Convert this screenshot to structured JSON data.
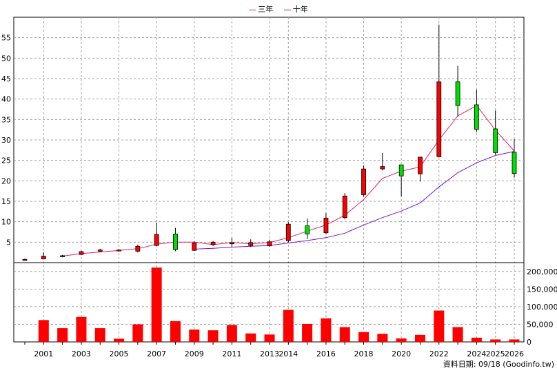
{
  "legend": {
    "ma3_label": "三年",
    "ma10_label": "十年",
    "ma3_color": "#e0206a",
    "ma10_color": "#7a10d0"
  },
  "credit": "資料日期: 09/18  (Goodinfo.tw)",
  "colors": {
    "up": "#ff0000",
    "down": "#00e000",
    "volume": "#ff0000",
    "grid": "#a0a0a0"
  },
  "chart_data": [
    {
      "type": "candlestick",
      "title": "",
      "ylim": [
        0,
        60
      ],
      "yticks": [
        5,
        10,
        15,
        20,
        25,
        30,
        35,
        40,
        45,
        50,
        55
      ],
      "x_tick_labels": [
        "2001",
        "2003",
        "2005",
        "2007",
        "2009",
        "2011",
        "2013",
        "2014",
        "2016",
        "2018",
        "2020",
        "2022",
        "2024",
        "2025",
        "2026"
      ],
      "x_tick_years": [
        2001,
        2003,
        2005,
        2007,
        2009,
        2011,
        2013,
        2014,
        2016,
        2018,
        2020,
        2022,
        2024,
        2025,
        2026
      ],
      "candles": [
        {
          "year": 2000,
          "open": 0.8,
          "close": 0.8,
          "high": 1.0,
          "low": 0.6
        },
        {
          "year": 2001,
          "open": 0.9,
          "close": 1.6,
          "high": 2.5,
          "low": 0.8
        },
        {
          "year": 2002,
          "open": 1.5,
          "close": 1.7,
          "high": 1.9,
          "low": 1.3
        },
        {
          "year": 2003,
          "open": 2.0,
          "close": 2.7,
          "high": 2.9,
          "low": 1.8
        },
        {
          "year": 2004,
          "open": 2.8,
          "close": 3.1,
          "high": 3.4,
          "low": 2.6
        },
        {
          "year": 2005,
          "open": 2.9,
          "close": 3.1,
          "high": 3.3,
          "low": 2.7
        },
        {
          "year": 2006,
          "open": 2.8,
          "close": 4.0,
          "high": 4.4,
          "low": 2.5
        },
        {
          "year": 2007,
          "open": 4.2,
          "close": 6.9,
          "high": 9.8,
          "low": 4.0
        },
        {
          "year": 2008,
          "open": 7.0,
          "close": 3.2,
          "high": 8.5,
          "low": 2.8
        },
        {
          "year": 2009,
          "open": 3.0,
          "close": 4.8,
          "high": 5.2,
          "low": 2.9
        },
        {
          "year": 2010,
          "open": 4.4,
          "close": 5.0,
          "high": 5.3,
          "low": 4.1
        },
        {
          "year": 2011,
          "open": 4.6,
          "close": 4.9,
          "high": 6.1,
          "low": 3.9
        },
        {
          "year": 2012,
          "open": 4.2,
          "close": 4.9,
          "high": 5.7,
          "low": 3.8
        },
        {
          "year": 2013,
          "open": 4.1,
          "close": 5.1,
          "high": 5.6,
          "low": 3.9
        },
        {
          "year": 2014,
          "open": 5.4,
          "close": 9.4,
          "high": 9.9,
          "low": 5.0
        },
        {
          "year": 2015,
          "open": 9.0,
          "close": 7.0,
          "high": 10.8,
          "low": 5.8
        },
        {
          "year": 2016,
          "open": 7.3,
          "close": 10.9,
          "high": 12.1,
          "low": 7.0
        },
        {
          "year": 2017,
          "open": 11.0,
          "close": 16.3,
          "high": 17.0,
          "low": 10.6
        },
        {
          "year": 2018,
          "open": 16.6,
          "close": 22.9,
          "high": 23.8,
          "low": 16.1
        },
        {
          "year": 2019,
          "open": 22.9,
          "close": 23.5,
          "high": 26.8,
          "low": 22.6
        },
        {
          "year": 2020,
          "open": 23.9,
          "close": 21.2,
          "high": 24.0,
          "low": 16.2
        },
        {
          "year": 2021,
          "open": 21.7,
          "close": 25.8,
          "high": 25.9,
          "low": 19.8
        },
        {
          "year": 2022,
          "open": 25.9,
          "close": 44.2,
          "high": 58.2,
          "low": 25.7
        },
        {
          "year": 2023,
          "open": 44.2,
          "close": 38.4,
          "high": 48.1,
          "low": 35.7
        },
        {
          "year": 2024,
          "open": 38.6,
          "close": 32.6,
          "high": 42.3,
          "low": 31.9
        },
        {
          "year": 2025,
          "open": 32.7,
          "close": 26.9,
          "high": 37.2,
          "low": 26.4
        },
        {
          "year": 2026,
          "open": 27.0,
          "close": 21.8,
          "high": 30.2,
          "low": 20.8
        }
      ],
      "series": [
        {
          "name": "三年",
          "x": [
            2002,
            2003,
            2004,
            2005,
            2006,
            2007,
            2008,
            2009,
            2010,
            2011,
            2012,
            2013,
            2014,
            2015,
            2016,
            2017,
            2018,
            2019,
            2020,
            2021,
            2022,
            2023,
            2024,
            2025,
            2026
          ],
          "values": [
            1.6,
            2.2,
            2.6,
            3.0,
            3.4,
            4.5,
            5.0,
            5.0,
            4.4,
            4.9,
            4.6,
            4.9,
            6.1,
            7.7,
            9.2,
            11.6,
            15.4,
            20.6,
            22.4,
            23.4,
            30.0,
            35.9,
            38.4,
            32.4,
            27.3
          ]
        },
        {
          "name": "十年",
          "x": [
            2009,
            2010,
            2011,
            2012,
            2013,
            2014,
            2015,
            2016,
            2017,
            2018,
            2019,
            2020,
            2021,
            2022,
            2023,
            2024,
            2025,
            2026
          ],
          "values": [
            3.3,
            3.5,
            3.8,
            4.0,
            4.2,
            4.8,
            5.4,
            6.1,
            7.2,
            9.2,
            11.0,
            12.6,
            14.6,
            18.5,
            22.0,
            24.4,
            26.2,
            27.2
          ]
        }
      ]
    },
    {
      "type": "bar",
      "title": "",
      "ylim": [
        0,
        225000
      ],
      "yticks": [
        0,
        50000,
        100000,
        150000,
        200000
      ],
      "ytick_labels": [
        "0",
        "50,000",
        "100,000",
        "150,000",
        "200,000"
      ],
      "x": [
        2000,
        2001,
        2002,
        2003,
        2004,
        2005,
        2006,
        2007,
        2008,
        2009,
        2010,
        2011,
        2012,
        2013,
        2014,
        2015,
        2016,
        2017,
        2018,
        2019,
        2020,
        2021,
        2022,
        2023,
        2024,
        2025,
        2026
      ],
      "values": [
        0,
        62000,
        39000,
        71000,
        39000,
        9000,
        50000,
        211000,
        59000,
        35000,
        33000,
        48000,
        24000,
        21000,
        91000,
        51000,
        67000,
        42000,
        28000,
        23000,
        10000,
        20000,
        89000,
        42000,
        12000,
        7000,
        7000
      ]
    }
  ]
}
